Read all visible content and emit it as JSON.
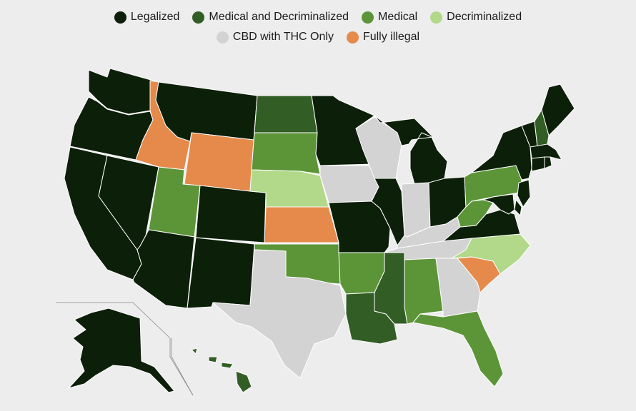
{
  "legend": {
    "categories": [
      {
        "key": "legalized",
        "label": "Legalized",
        "color": "#0c1f08"
      },
      {
        "key": "medical_decrim",
        "label": "Medical and Decriminalized",
        "color": "#325e26"
      },
      {
        "key": "medical",
        "label": "Medical",
        "color": "#5c9538"
      },
      {
        "key": "decriminalized",
        "label": "Decriminalized",
        "color": "#b2d88a"
      },
      {
        "key": "cbd_thc",
        "label": "CBD with THC Only",
        "color": "#d3d3d3"
      },
      {
        "key": "fully_illegal",
        "label": "Fully illegal",
        "color": "#e58a4b"
      }
    ]
  },
  "states": {
    "WA": "legalized",
    "OR": "legalized",
    "CA": "legalized",
    "NV": "legalized",
    "ID": "fully_illegal",
    "MT": "legalized",
    "WY": "fully_illegal",
    "UT": "medical",
    "AZ": "legalized",
    "CO": "legalized",
    "NM": "legalized",
    "ND": "medical_decrim",
    "SD": "medical",
    "NE": "decriminalized",
    "KS": "fully_illegal",
    "OK": "medical",
    "TX": "cbd_thc",
    "MN": "legalized",
    "IA": "cbd_thc",
    "MO": "legalized",
    "AR": "medical",
    "LA": "medical_decrim",
    "WI": "cbd_thc",
    "IL": "legalized",
    "MS": "medical_decrim",
    "MI": "legalized",
    "IN": "cbd_thc",
    "KY": "cbd_thc",
    "TN": "cbd_thc",
    "AL": "medical",
    "OH": "legalized",
    "GA": "cbd_thc",
    "FL": "medical",
    "SC": "fully_illegal",
    "NC": "decriminalized",
    "VA": "legalized",
    "WV": "medical",
    "PA": "medical",
    "NY": "legalized",
    "VT": "legalized",
    "NH": "medical_decrim",
    "ME": "legalized",
    "MA": "legalized",
    "CT": "legalized",
    "RI": "legalized",
    "NJ": "legalized",
    "DE": "legalized",
    "MD": "legalized",
    "AK": "legalized",
    "HI": "medical_decrim"
  }
}
